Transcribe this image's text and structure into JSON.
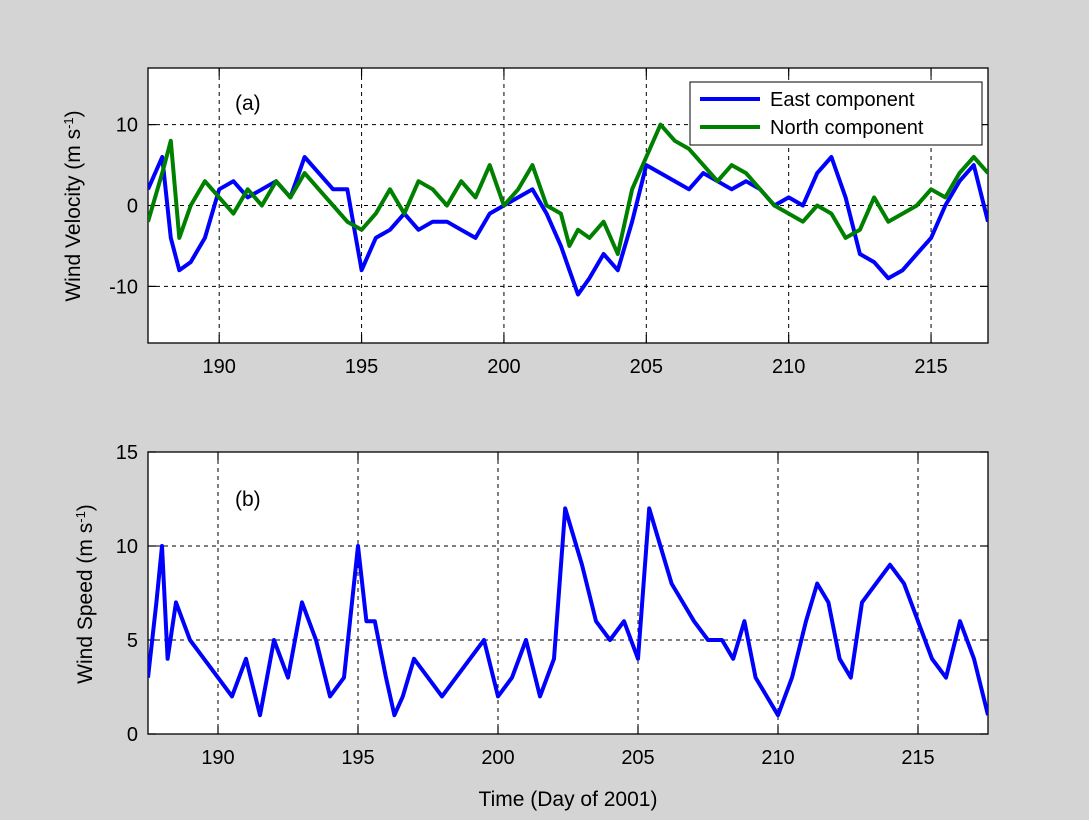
{
  "chart_data": [
    {
      "type": "line",
      "panel_label": "(a)",
      "ylabel": "Wind Velocity  (m s",
      "ylabel_sup": "-1",
      "ylabel_close": ")",
      "xlim": [
        187.5,
        217
      ],
      "ylim": [
        -17,
        17
      ],
      "xticks": [
        190,
        195,
        200,
        205,
        210,
        215
      ],
      "yticks": [
        -10,
        0,
        10
      ],
      "grid": true,
      "legend_position": "top-right",
      "series": [
        {
          "name": "East component",
          "color": "#0000ff",
          "x": [
            187.5,
            188.0,
            188.3,
            188.6,
            189.0,
            189.5,
            190.0,
            190.5,
            191.0,
            191.5,
            192.0,
            192.5,
            193.0,
            193.5,
            194.0,
            194.5,
            195.0,
            195.5,
            196.0,
            196.5,
            197.0,
            197.5,
            198.0,
            198.5,
            199.0,
            199.5,
            200.0,
            200.5,
            201.0,
            201.5,
            202.0,
            202.3,
            202.6,
            203.0,
            203.5,
            204.0,
            204.5,
            205.0,
            205.5,
            206.0,
            206.5,
            207.0,
            207.5,
            208.0,
            208.5,
            209.0,
            209.5,
            210.0,
            210.5,
            211.0,
            211.5,
            212.0,
            212.5,
            213.0,
            213.5,
            214.0,
            214.5,
            215.0,
            215.5,
            216.0,
            216.5,
            217.0
          ],
          "y": [
            2,
            6,
            -4,
            -8,
            -7,
            -4,
            2,
            3,
            1,
            2,
            3,
            1,
            6,
            4,
            2,
            2,
            -8,
            -4,
            -3,
            -1,
            -3,
            -2,
            -2,
            -3,
            -4,
            -1,
            0,
            1,
            2,
            -1,
            -5,
            -8,
            -11,
            -9,
            -6,
            -8,
            -2,
            5,
            4,
            3,
            2,
            4,
            3,
            2,
            3,
            2,
            0,
            1,
            0,
            4,
            6,
            1,
            -6,
            -7,
            -9,
            -8,
            -6,
            -4,
            0,
            3,
            5,
            -2
          ]
        },
        {
          "name": "North component",
          "color": "#008000",
          "x": [
            187.5,
            188.0,
            188.3,
            188.6,
            189.0,
            189.5,
            190.0,
            190.5,
            191.0,
            191.5,
            192.0,
            192.5,
            193.0,
            193.5,
            194.0,
            194.5,
            195.0,
            195.5,
            196.0,
            196.5,
            197.0,
            197.5,
            198.0,
            198.5,
            199.0,
            199.5,
            200.0,
            200.5,
            201.0,
            201.5,
            202.0,
            202.3,
            202.6,
            203.0,
            203.5,
            204.0,
            204.5,
            205.0,
            205.5,
            206.0,
            206.5,
            207.0,
            207.5,
            208.0,
            208.5,
            209.0,
            209.5,
            210.0,
            210.5,
            211.0,
            211.5,
            212.0,
            212.5,
            213.0,
            213.5,
            214.0,
            214.5,
            215.0,
            215.5,
            216.0,
            216.5,
            217.0
          ],
          "y": [
            -2,
            4,
            8,
            -4,
            0,
            3,
            1,
            -1,
            2,
            0,
            3,
            1,
            4,
            2,
            0,
            -2,
            -3,
            -1,
            2,
            -1,
            3,
            2,
            0,
            3,
            1,
            5,
            0,
            2,
            5,
            0,
            -1,
            -5,
            -3,
            -4,
            -2,
            -6,
            2,
            6,
            10,
            8,
            7,
            5,
            3,
            5,
            4,
            2,
            0,
            -1,
            -2,
            0,
            -1,
            -4,
            -3,
            1,
            -2,
            -1,
            0,
            2,
            1,
            4,
            6,
            4
          ]
        }
      ]
    },
    {
      "type": "line",
      "panel_label": "(b)",
      "ylabel": "Wind Speed (m s",
      "ylabel_sup": "-1",
      "ylabel_close": ")",
      "xlabel": "Time (Day of 2001)",
      "xlim": [
        187.5,
        217.5
      ],
      "ylim": [
        0,
        15
      ],
      "xticks": [
        190,
        195,
        200,
        205,
        210,
        215
      ],
      "yticks": [
        0,
        5,
        10,
        15
      ],
      "grid": true,
      "series": [
        {
          "name": "",
          "color": "#0000ff",
          "x": [
            187.5,
            187.8,
            188.0,
            188.2,
            188.5,
            189.0,
            189.5,
            190.0,
            190.5,
            191.0,
            191.5,
            192.0,
            192.5,
            193.0,
            193.5,
            194.0,
            194.5,
            195.0,
            195.3,
            195.6,
            196.0,
            196.3,
            196.6,
            197.0,
            197.5,
            198.0,
            198.5,
            199.0,
            199.5,
            200.0,
            200.5,
            201.0,
            201.5,
            202.0,
            202.4,
            202.8,
            203.0,
            203.5,
            204.0,
            204.5,
            205.0,
            205.4,
            205.8,
            206.2,
            206.6,
            207.0,
            207.5,
            208.0,
            208.4,
            208.8,
            209.2,
            209.6,
            210.0,
            210.5,
            211.0,
            211.4,
            211.8,
            212.2,
            212.6,
            213.0,
            213.5,
            214.0,
            214.5,
            215.0,
            215.5,
            216.0,
            216.5,
            217.0,
            217.5
          ],
          "y": [
            3,
            7,
            10,
            4,
            7,
            5,
            4,
            3,
            2,
            4,
            1,
            5,
            3,
            7,
            5,
            2,
            3,
            10,
            6,
            6,
            3,
            1,
            2,
            4,
            3,
            2,
            3,
            4,
            5,
            2,
            3,
            5,
            2,
            4,
            12,
            10,
            9,
            6,
            5,
            6,
            4,
            12,
            10,
            8,
            7,
            6,
            5,
            5,
            4,
            6,
            3,
            2,
            1,
            3,
            6,
            8,
            7,
            4,
            3,
            7,
            8,
            9,
            8,
            6,
            4,
            3,
            6,
            4,
            1
          ]
        }
      ]
    }
  ],
  "legend": {
    "east_label": "East component",
    "north_label": "North component"
  },
  "colors": {
    "figure_background": "#d4d4d4",
    "plot_background": "#ffffff",
    "east": "#0000ff",
    "north": "#008000"
  }
}
